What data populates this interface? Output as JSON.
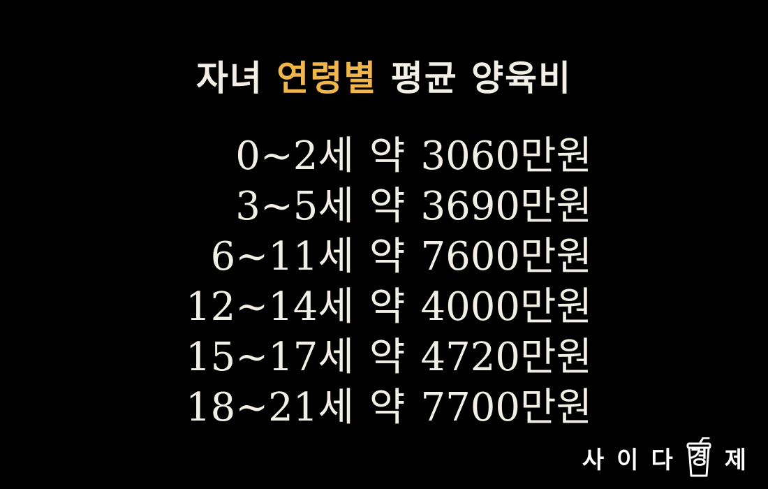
{
  "title": {
    "part1": "자녀",
    "highlight": "연령별",
    "part2": "평균 양육비",
    "highlight_color": "#f0b64a"
  },
  "rows": [
    {
      "age": "0~2세",
      "prefix": "약",
      "amount": "3060만원"
    },
    {
      "age": "3~5세",
      "prefix": "약",
      "amount": "3690만원"
    },
    {
      "age": "6~11세",
      "prefix": "약",
      "amount": "7600만원"
    },
    {
      "age": "12~14세",
      "prefix": "약",
      "amount": "4000만원"
    },
    {
      "age": "15~17세",
      "prefix": "약",
      "amount": "4720만원"
    },
    {
      "age": "18~21세",
      "prefix": "약",
      "amount": "7700만원"
    }
  ],
  "logo": {
    "chars": [
      "사",
      "이",
      "다"
    ],
    "cup_char": "경",
    "last_char": "제",
    "icon": "cup-icon"
  },
  "colors": {
    "background": "#000000",
    "text": "#f2efe6",
    "accent": "#f0b64a"
  }
}
